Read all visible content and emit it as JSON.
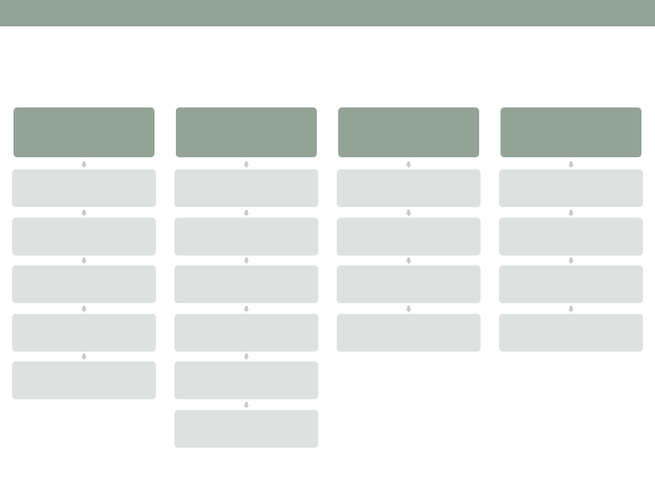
{
  "page": {
    "title": ""
  },
  "colors": {
    "header_bar": "#93a398",
    "column_header": "#93a398",
    "step_box": "#dde1e0",
    "arrow": "#c6cac9"
  },
  "columns": [
    {
      "header": "",
      "steps": [
        "",
        "",
        "",
        "",
        ""
      ]
    },
    {
      "header": "",
      "steps": [
        "",
        "",
        "",
        "",
        "",
        ""
      ]
    },
    {
      "header": "",
      "steps": [
        "",
        "",
        "",
        ""
      ]
    },
    {
      "header": "",
      "steps": [
        "",
        "",
        "",
        ""
      ]
    }
  ]
}
